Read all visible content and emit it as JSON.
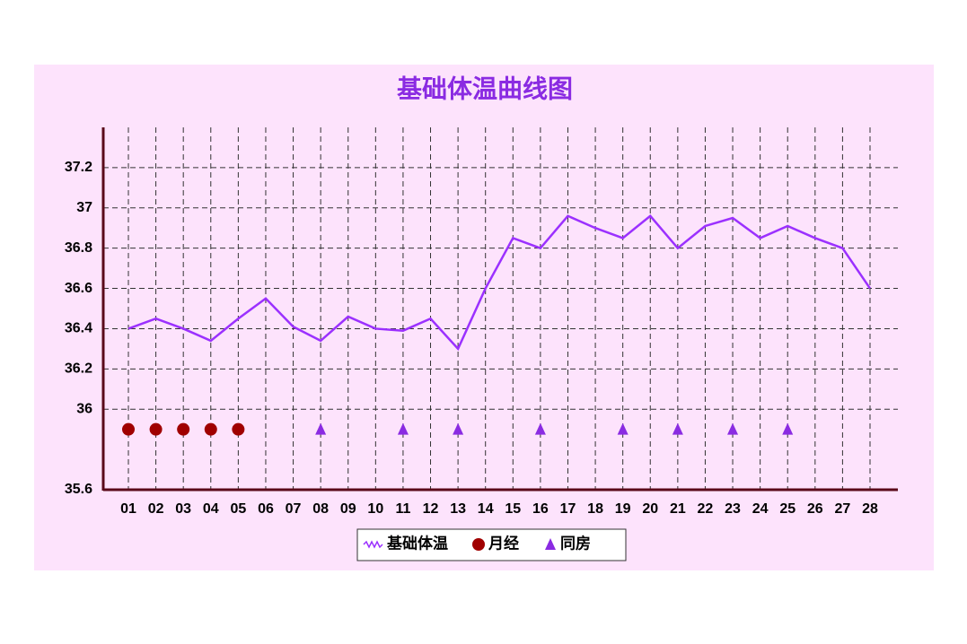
{
  "chart_data": {
    "type": "line",
    "title": "基础体温曲线图",
    "categories": [
      "01",
      "02",
      "03",
      "04",
      "05",
      "06",
      "07",
      "08",
      "09",
      "10",
      "11",
      "12",
      "13",
      "14",
      "15",
      "16",
      "17",
      "18",
      "19",
      "20",
      "21",
      "22",
      "23",
      "24",
      "25",
      "26",
      "27",
      "28"
    ],
    "series": [
      {
        "name": "基础体温",
        "color": "#9b30ff",
        "marker": "line",
        "values": [
          36.4,
          36.45,
          36.4,
          36.34,
          36.45,
          36.55,
          36.41,
          36.34,
          36.46,
          36.4,
          36.39,
          36.45,
          36.3,
          36.6,
          36.85,
          36.8,
          36.96,
          36.9,
          36.85,
          36.96,
          36.8,
          36.91,
          36.95,
          36.85,
          36.91,
          36.85,
          36.8,
          36.6
        ]
      },
      {
        "name": "月经",
        "color": "#a00000",
        "marker": "circle",
        "values": [
          35.9,
          35.9,
          35.9,
          35.9,
          35.9,
          null,
          null,
          null,
          null,
          null,
          null,
          null,
          null,
          null,
          null,
          null,
          null,
          null,
          null,
          null,
          null,
          null,
          null,
          null,
          null,
          null,
          null,
          null
        ]
      },
      {
        "name": "同房",
        "color": "#8a2be2",
        "marker": "triangle",
        "values": [
          null,
          null,
          null,
          null,
          null,
          null,
          null,
          35.9,
          null,
          null,
          35.9,
          null,
          35.9,
          null,
          null,
          35.9,
          null,
          null,
          35.9,
          null,
          35.9,
          null,
          35.9,
          null,
          35.9,
          null,
          null,
          null
        ]
      }
    ],
    "ylim": [
      35.6,
      37.4
    ],
    "yticks": [
      35.6,
      36,
      36.2,
      36.4,
      36.6,
      36.8,
      37,
      37.2
    ],
    "grid": true
  }
}
